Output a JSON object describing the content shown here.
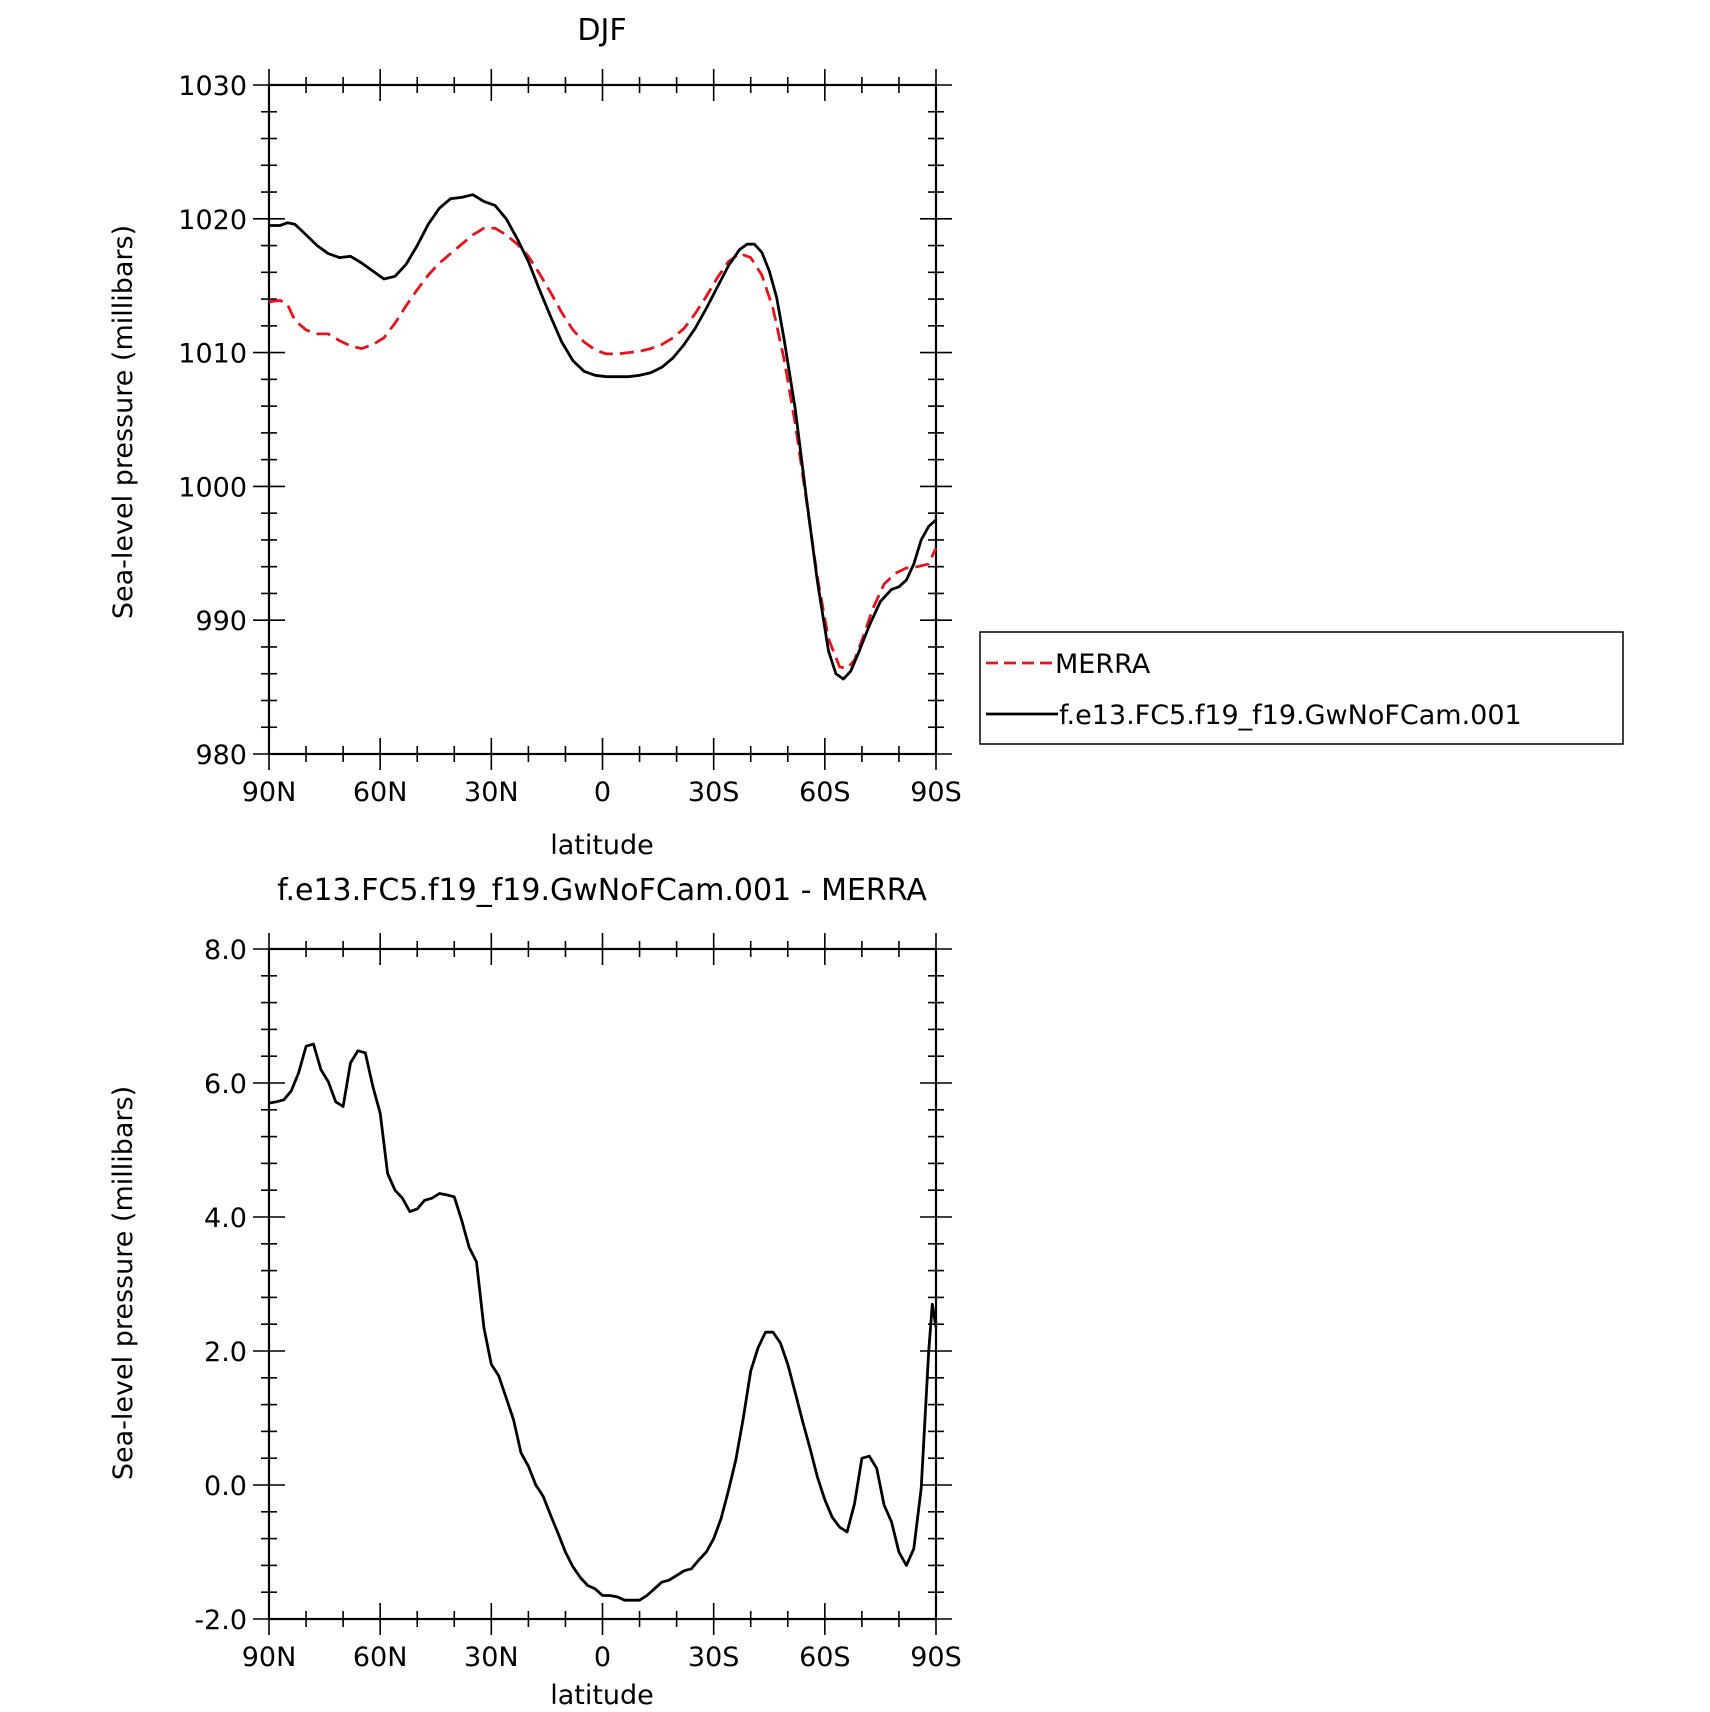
{
  "chart_data": [
    {
      "type": "line",
      "title": "DJF",
      "xlabel": "latitude",
      "ylabel": "Sea-level pressure (millibars)",
      "xlim": [
        90,
        -90
      ],
      "ylim": [
        980,
        1030
      ],
      "x_ticks": [
        {
          "value": 90,
          "label": "90N"
        },
        {
          "value": 60,
          "label": "60N"
        },
        {
          "value": 30,
          "label": "30N"
        },
        {
          "value": 0,
          "label": "0"
        },
        {
          "value": -30,
          "label": "30S"
        },
        {
          "value": -60,
          "label": "60S"
        },
        {
          "value": -90,
          "label": "90S"
        }
      ],
      "y_ticks": [
        {
          "value": 980,
          "label": "980"
        },
        {
          "value": 990,
          "label": "990"
        },
        {
          "value": 1000,
          "label": "1000"
        },
        {
          "value": 1010,
          "label": "1010"
        },
        {
          "value": 1020,
          "label": "1020"
        },
        {
          "value": 1030,
          "label": "1030"
        }
      ],
      "legend": "right",
      "series": [
        {
          "name": "MERRA",
          "color": "#e8121a",
          "dash": "dashed",
          "points": [
            [
              90,
              1013.8
            ],
            [
              87,
              1013.9
            ],
            [
              85,
              1013.6
            ],
            [
              83,
              1012.4
            ],
            [
              80,
              1011.7
            ],
            [
              77,
              1011.4
            ],
            [
              74,
              1011.4
            ],
            [
              71,
              1010.9
            ],
            [
              68,
              1010.5
            ],
            [
              65,
              1010.3
            ],
            [
              62,
              1010.6
            ],
            [
              59,
              1011.1
            ],
            [
              56,
              1012.2
            ],
            [
              53,
              1013.5
            ],
            [
              50,
              1014.7
            ],
            [
              47,
              1015.8
            ],
            [
              44,
              1016.7
            ],
            [
              41,
              1017.4
            ],
            [
              38,
              1018.1
            ],
            [
              35,
              1018.8
            ],
            [
              32,
              1019.3
            ],
            [
              29,
              1019.3
            ],
            [
              26,
              1018.8
            ],
            [
              23,
              1018.1
            ],
            [
              20,
              1017.2
            ],
            [
              17,
              1015.9
            ],
            [
              14,
              1014.5
            ],
            [
              11,
              1013.0
            ],
            [
              8,
              1011.7
            ],
            [
              5,
              1010.8
            ],
            [
              2,
              1010.2
            ],
            [
              -1,
              1009.9
            ],
            [
              -4,
              1009.9
            ],
            [
              -7,
              1010.0
            ],
            [
              -10,
              1010.1
            ],
            [
              -13,
              1010.3
            ],
            [
              -16,
              1010.6
            ],
            [
              -19,
              1011.1
            ],
            [
              -22,
              1011.8
            ],
            [
              -25,
              1012.9
            ],
            [
              -28,
              1014.2
            ],
            [
              -31,
              1015.6
            ],
            [
              -34,
              1016.8
            ],
            [
              -37,
              1017.4
            ],
            [
              -40,
              1017.1
            ],
            [
              -43,
              1015.8
            ],
            [
              -46,
              1013.3
            ],
            [
              -49,
              1009.5
            ],
            [
              -52,
              1004.7
            ],
            [
              -55,
              999.0
            ],
            [
              -58,
              993.2
            ],
            [
              -61,
              988.6
            ],
            [
              -64,
              986.5
            ],
            [
              -66,
              986.4
            ],
            [
              -68,
              987.0
            ],
            [
              -70,
              988.5
            ],
            [
              -73,
              990.9
            ],
            [
              -76,
              992.7
            ],
            [
              -79,
              993.5
            ],
            [
              -82,
              993.9
            ],
            [
              -85,
              994.0
            ],
            [
              -88,
              994.2
            ],
            [
              -90,
              995.4
            ]
          ]
        },
        {
          "name": "f.e13.FC5.f19_f19.GwNoFCam.001",
          "color": "#000000",
          "dash": "solid",
          "points": [
            [
              90,
              1019.5
            ],
            [
              87,
              1019.5
            ],
            [
              85,
              1019.7
            ],
            [
              83,
              1019.6
            ],
            [
              80,
              1018.8
            ],
            [
              77,
              1018.0
            ],
            [
              74,
              1017.4
            ],
            [
              71,
              1017.1
            ],
            [
              68,
              1017.2
            ],
            [
              65,
              1016.7
            ],
            [
              62,
              1016.1
            ],
            [
              59,
              1015.5
            ],
            [
              56,
              1015.7
            ],
            [
              53,
              1016.6
            ],
            [
              50,
              1018.0
            ],
            [
              47,
              1019.6
            ],
            [
              44,
              1020.8
            ],
            [
              41,
              1021.5
            ],
            [
              38,
              1021.6
            ],
            [
              35,
              1021.8
            ],
            [
              32,
              1021.3
            ],
            [
              29,
              1021.0
            ],
            [
              26,
              1020.0
            ],
            [
              23,
              1018.5
            ],
            [
              20,
              1016.8
            ],
            [
              17,
              1014.7
            ],
            [
              14,
              1012.7
            ],
            [
              11,
              1010.8
            ],
            [
              8,
              1009.4
            ],
            [
              5,
              1008.6
            ],
            [
              2,
              1008.3
            ],
            [
              -1,
              1008.2
            ],
            [
              -4,
              1008.2
            ],
            [
              -7,
              1008.2
            ],
            [
              -10,
              1008.3
            ],
            [
              -13,
              1008.5
            ],
            [
              -16,
              1008.9
            ],
            [
              -19,
              1009.6
            ],
            [
              -22,
              1010.6
            ],
            [
              -25,
              1011.8
            ],
            [
              -28,
              1013.3
            ],
            [
              -31,
              1014.9
            ],
            [
              -34,
              1016.5
            ],
            [
              -37,
              1017.7
            ],
            [
              -39,
              1018.1
            ],
            [
              -41,
              1018.1
            ],
            [
              -43,
              1017.5
            ],
            [
              -45,
              1016.1
            ],
            [
              -47,
              1014.1
            ],
            [
              -49,
              1011.0
            ],
            [
              -52,
              1005.8
            ],
            [
              -55,
              999.2
            ],
            [
              -58,
              992.9
            ],
            [
              -61,
              987.7
            ],
            [
              -63,
              986.0
            ],
            [
              -65,
              985.6
            ],
            [
              -67,
              986.2
            ],
            [
              -69,
              987.5
            ],
            [
              -72,
              989.6
            ],
            [
              -75,
              991.4
            ],
            [
              -78,
              992.3
            ],
            [
              -80,
              992.5
            ],
            [
              -82,
              993.0
            ],
            [
              -84,
              994.2
            ],
            [
              -86,
              996.0
            ],
            [
              -88,
              997.0
            ],
            [
              -90,
              997.5
            ]
          ]
        }
      ]
    },
    {
      "type": "line",
      "title": "f.e13.FC5.f19_f19.GwNoFCam.001 - MERRA",
      "xlabel": "latitude",
      "ylabel": "Sea-level pressure (millibars)",
      "xlim": [
        90,
        -90
      ],
      "ylim": [
        -2.0,
        8.0
      ],
      "x_ticks": [
        {
          "value": 90,
          "label": "90N"
        },
        {
          "value": 60,
          "label": "60N"
        },
        {
          "value": 30,
          "label": "30N"
        },
        {
          "value": 0,
          "label": "0"
        },
        {
          "value": -30,
          "label": "30S"
        },
        {
          "value": -60,
          "label": "60S"
        },
        {
          "value": -90,
          "label": "90S"
        }
      ],
      "y_ticks": [
        {
          "value": -2.0,
          "label": "-2.0"
        },
        {
          "value": 0.0,
          "label": "0.0"
        },
        {
          "value": 2.0,
          "label": "2.0"
        },
        {
          "value": 4.0,
          "label": "4.0"
        },
        {
          "value": 6.0,
          "label": "6.0"
        },
        {
          "value": 8.0,
          "label": "8.0"
        }
      ],
      "series": [
        {
          "color": "#000000",
          "dash": "solid",
          "points": [
            [
              90,
              5.7
            ],
            [
              88,
              5.72
            ],
            [
              86,
              5.75
            ],
            [
              84,
              5.88
            ],
            [
              82,
              6.15
            ],
            [
              80,
              6.55
            ],
            [
              78,
              6.58
            ],
            [
              76,
              6.2
            ],
            [
              74,
              6.02
            ],
            [
              72,
              5.72
            ],
            [
              70,
              5.65
            ],
            [
              68,
              6.3
            ],
            [
              66,
              6.48
            ],
            [
              64,
              6.45
            ],
            [
              62,
              5.95
            ],
            [
              60,
              5.55
            ],
            [
              58,
              4.65
            ],
            [
              56,
              4.4
            ],
            [
              54,
              4.28
            ],
            [
              52,
              4.08
            ],
            [
              50,
              4.12
            ],
            [
              48,
              4.25
            ],
            [
              46,
              4.28
            ],
            [
              44,
              4.35
            ],
            [
              42,
              4.33
            ],
            [
              40,
              4.3
            ],
            [
              38,
              3.95
            ],
            [
              36,
              3.55
            ],
            [
              34,
              3.33
            ],
            [
              32,
              2.35
            ],
            [
              30,
              1.8
            ],
            [
              28,
              1.63
            ],
            [
              26,
              1.3
            ],
            [
              24,
              0.97
            ],
            [
              22,
              0.48
            ],
            [
              20,
              0.28
            ],
            [
              18,
              0.0
            ],
            [
              16,
              -0.17
            ],
            [
              14,
              -0.45
            ],
            [
              12,
              -0.72
            ],
            [
              10,
              -1.0
            ],
            [
              8,
              -1.22
            ],
            [
              6,
              -1.38
            ],
            [
              4,
              -1.5
            ],
            [
              2,
              -1.55
            ],
            [
              0,
              -1.65
            ],
            [
              -2,
              -1.65
            ],
            [
              -4,
              -1.67
            ],
            [
              -6,
              -1.72
            ],
            [
              -8,
              -1.72
            ],
            [
              -10,
              -1.72
            ],
            [
              -12,
              -1.65
            ],
            [
              -14,
              -1.55
            ],
            [
              -16,
              -1.45
            ],
            [
              -18,
              -1.42
            ],
            [
              -20,
              -1.35
            ],
            [
              -22,
              -1.28
            ],
            [
              -24,
              -1.25
            ],
            [
              -26,
              -1.12
            ],
            [
              -28,
              -1.0
            ],
            [
              -30,
              -0.8
            ],
            [
              -32,
              -0.5
            ],
            [
              -34,
              -0.08
            ],
            [
              -36,
              0.38
            ],
            [
              -38,
              1.0
            ],
            [
              -40,
              1.7
            ],
            [
              -42,
              2.05
            ],
            [
              -44,
              2.28
            ],
            [
              -46,
              2.28
            ],
            [
              -48,
              2.12
            ],
            [
              -50,
              1.8
            ],
            [
              -52,
              1.38
            ],
            [
              -54,
              0.95
            ],
            [
              -56,
              0.55
            ],
            [
              -58,
              0.12
            ],
            [
              -60,
              -0.22
            ],
            [
              -62,
              -0.48
            ],
            [
              -64,
              -0.63
            ],
            [
              -66,
              -0.7
            ],
            [
              -68,
              -0.28
            ],
            [
              -70,
              0.4
            ],
            [
              -72,
              0.43
            ],
            [
              -74,
              0.25
            ],
            [
              -76,
              -0.3
            ],
            [
              -78,
              -0.55
            ],
            [
              -80,
              -1.0
            ],
            [
              -82,
              -1.2
            ],
            [
              -84,
              -0.95
            ],
            [
              -86,
              -0.05
            ],
            [
              -88,
              1.97
            ],
            [
              -89,
              2.7
            ],
            [
              -90,
              2.35
            ]
          ]
        }
      ]
    }
  ]
}
